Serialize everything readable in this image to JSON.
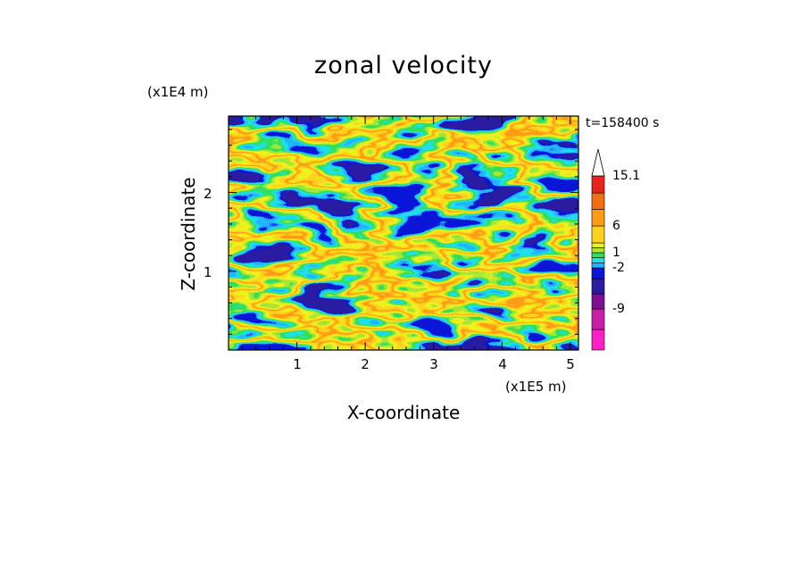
{
  "chart_data": {
    "type": "heatmap",
    "title": "zonal velocity",
    "xlabel": "X-coordinate",
    "ylabel": "Z-coordinate",
    "x_unit": "(x1E5 m)",
    "y_unit": "(x1E4 m)",
    "time_label": "t=158400 s",
    "xlim": [
      0,
      5.12
    ],
    "ylim": [
      0,
      2.97
    ],
    "x_ticks": [
      "1",
      "2",
      "3",
      "4",
      "5"
    ],
    "x_tick_values": [
      1,
      2,
      3,
      4,
      5
    ],
    "y_ticks": [
      "1",
      "2"
    ],
    "y_tick_values": [
      1,
      2
    ],
    "colorbar": {
      "tick_labels": [
        "15.1",
        "6",
        "1",
        "-2",
        "-9"
      ],
      "tick_values": [
        15.1,
        6,
        1,
        -2,
        -9
      ],
      "levels": [
        -15,
        -12,
        -9,
        -6,
        -3,
        -2,
        -1,
        0,
        1,
        2,
        3,
        6,
        9,
        12,
        15.1
      ],
      "colors": [
        "#ff1fc8",
        "#c81ea8",
        "#7d0f95",
        "#2a1ca3",
        "#0a16d8",
        "#24b4ff",
        "#1de0ef",
        "#2ee05a",
        "#a6e636",
        "#eef21c",
        "#ffd21e",
        "#ff9c14",
        "#f26e10",
        "#e8221e",
        "#f59a9a",
        "#f9c9c9"
      ],
      "extend_max_color": "#ffffff"
    },
    "grid": false
  }
}
